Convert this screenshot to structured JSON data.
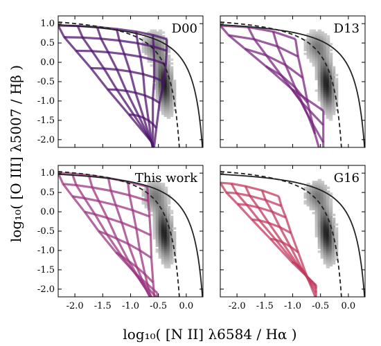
{
  "chart_data": {
    "type": "line",
    "layout": "2x2 panel grid, shared axes",
    "xlabel": "log₁₀( [N II] λ6584 / Hα )",
    "ylabel": "log₁₀( [O III] λ5007 / Hβ )",
    "xlim": [
      -2.3,
      0.3
    ],
    "ylim": [
      -2.2,
      1.2
    ],
    "x_ticks": [
      "-2.0",
      "-1.5",
      "-1.0",
      "-0.5",
      "0.0"
    ],
    "x_tick_values": [
      -2.0,
      -1.5,
      -1.0,
      -0.5,
      0.0
    ],
    "y_ticks": [
      "1.0",
      "0.5",
      "0.0",
      "-0.5",
      "-1.0",
      "-1.5",
      "-2.0"
    ],
    "y_tick_values": [
      1.0,
      0.5,
      0.0,
      -0.5,
      -1.0,
      -1.5,
      -2.0
    ],
    "background": "grayscale 2D histogram of observed galaxies, densest near x=-0.4, y=-0.5",
    "demarcation_lines": {
      "solid": {
        "form": "0.61/(x-0.47)+1.19",
        "color": "#222222"
      },
      "dashed": {
        "form": "0.61/(x-0.05)+1.30",
        "color": "#222222"
      }
    },
    "panels": [
      {
        "label": "D00",
        "color": "#4f136f",
        "grid": {
          "x_start": [
            -2.3,
            -1.95,
            -1.6,
            -1.25,
            -0.9,
            -0.6,
            -0.35
          ],
          "x_end": [
            -0.3,
            -0.38,
            -0.45,
            -0.52,
            -0.6
          ],
          "y_top": [
            0.95,
            0.65,
            0.3,
            -0.15,
            -0.7,
            -1.35,
            -2.1
          ],
          "dip": 0.0
        }
      },
      {
        "label": "D13",
        "color": "#7a2680",
        "grid": {
          "x_start": [
            -2.3,
            -1.8,
            -1.35,
            -0.95
          ],
          "x_end": [
            -0.28,
            -0.33,
            -0.38,
            -0.45
          ],
          "y_top": [
            0.95,
            0.7,
            0.35,
            -0.1,
            -0.7,
            -1.25
          ],
          "dip": 1.0
        }
      },
      {
        "label": "This work",
        "color": "#9c3580",
        "grid": {
          "x_start": [
            -2.3,
            -2.05,
            -1.75,
            -1.4,
            -1.05,
            -0.7
          ],
          "x_end": [
            -0.28,
            -0.34,
            -0.4,
            -0.46,
            -0.52
          ],
          "y_top": [
            1.0,
            0.72,
            0.4,
            0.0,
            -0.5,
            -1.05,
            -1.6,
            -2.1
          ],
          "dip": 0.6
        }
      },
      {
        "label": "G16",
        "color": "#c23a5e",
        "grid": {
          "x_start": [
            -2.3,
            -2.1,
            -1.85,
            -1.55,
            -1.25
          ],
          "x_end": [
            -0.35,
            -0.42,
            -0.5,
            -0.58
          ],
          "y_top": [
            0.75,
            0.5,
            0.2,
            -0.2,
            -0.7,
            -1.3,
            -1.9
          ],
          "dip": 0.0
        }
      }
    ]
  }
}
